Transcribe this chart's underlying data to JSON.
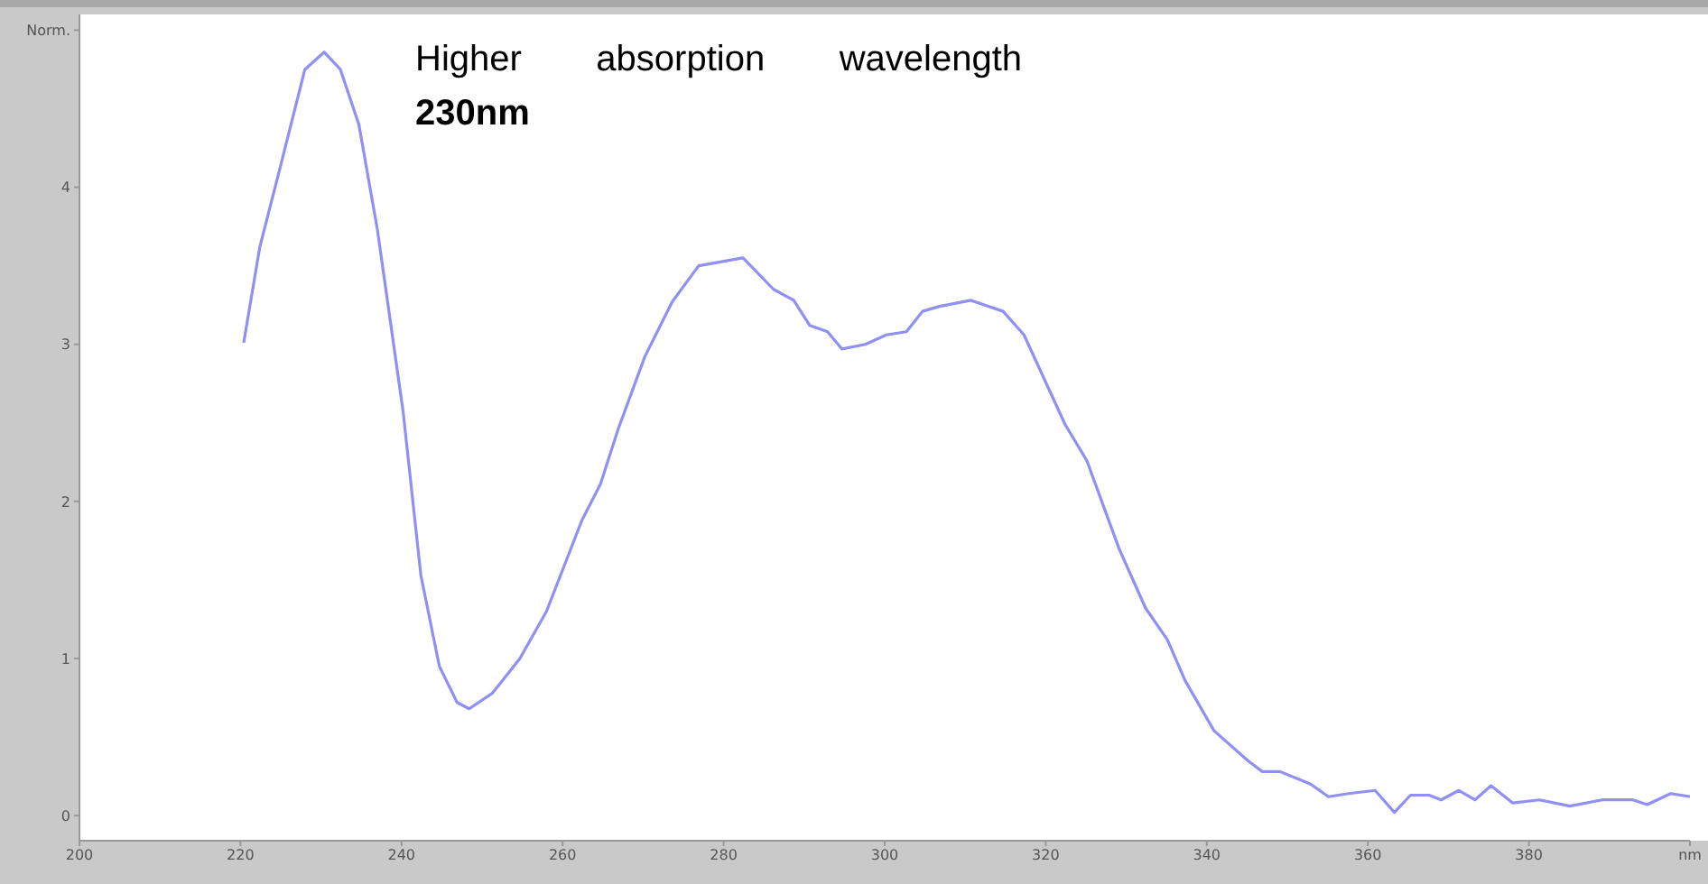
{
  "chart_data": {
    "type": "line",
    "annotations": [
      "Higher absorption wavelength 230nm"
    ],
    "xlim": [
      200,
      400
    ],
    "xticks": [
      200,
      220,
      240,
      260,
      280,
      300,
      320,
      340,
      360,
      380,
      {
        "value": 400,
        "label": "nm"
      }
    ],
    "ylim": [
      -0.16,
      5.1
    ],
    "yticks": [
      0,
      1,
      2,
      3,
      4,
      {
        "value": 5,
        "label": "Norm."
      }
    ],
    "marker": "none",
    "line_style": "solid",
    "x": [
      220.4,
      222.4,
      224.7,
      228,
      230.4,
      232.4,
      234.7,
      237,
      240.2,
      242.4,
      244.7,
      246.9,
      248.4,
      251.3,
      254.7,
      258,
      262.4,
      264.7,
      266.9,
      270.2,
      273.6,
      276.9,
      282.4,
      286.2,
      288.7,
      290.7,
      292.9,
      294.7,
      297.6,
      300.2,
      302.7,
      304.7,
      306.7,
      310.7,
      314.7,
      317.3,
      322.4,
      325.1,
      329.1,
      332.4,
      335.1,
      337.3,
      340.9,
      345.1,
      346.9,
      349.1,
      352.9,
      355.1,
      357.6,
      360.9,
      363.3,
      365.3,
      367.6,
      369.1,
      371.3,
      373.3,
      375.3,
      378,
      381.3,
      385.1,
      389.1,
      392.9,
      394.7,
      397.6,
      400
    ],
    "series": [
      {
        "color": "#9090f4",
        "values": [
          3.01,
          3.62,
          4.08,
          4.75,
          4.86,
          4.75,
          4.4,
          3.73,
          2.57,
          1.53,
          0.95,
          0.72,
          0.68,
          0.78,
          1.0,
          1.3,
          1.88,
          2.11,
          2.46,
          2.92,
          3.27,
          3.5,
          3.55,
          3.35,
          3.28,
          3.12,
          3.08,
          2.97,
          3.0,
          3.06,
          3.08,
          3.21,
          3.24,
          3.28,
          3.21,
          3.06,
          2.49,
          2.26,
          1.7,
          1.32,
          1.12,
          0.86,
          0.54,
          0.35,
          0.28,
          0.28,
          0.2,
          0.12,
          0.14,
          0.16,
          0.02,
          0.13,
          0.13,
          0.1,
          0.16,
          0.1,
          0.19,
          0.08,
          0.1,
          0.06,
          0.1,
          0.1,
          0.07,
          0.14,
          0.12
        ]
      }
    ]
  }
}
